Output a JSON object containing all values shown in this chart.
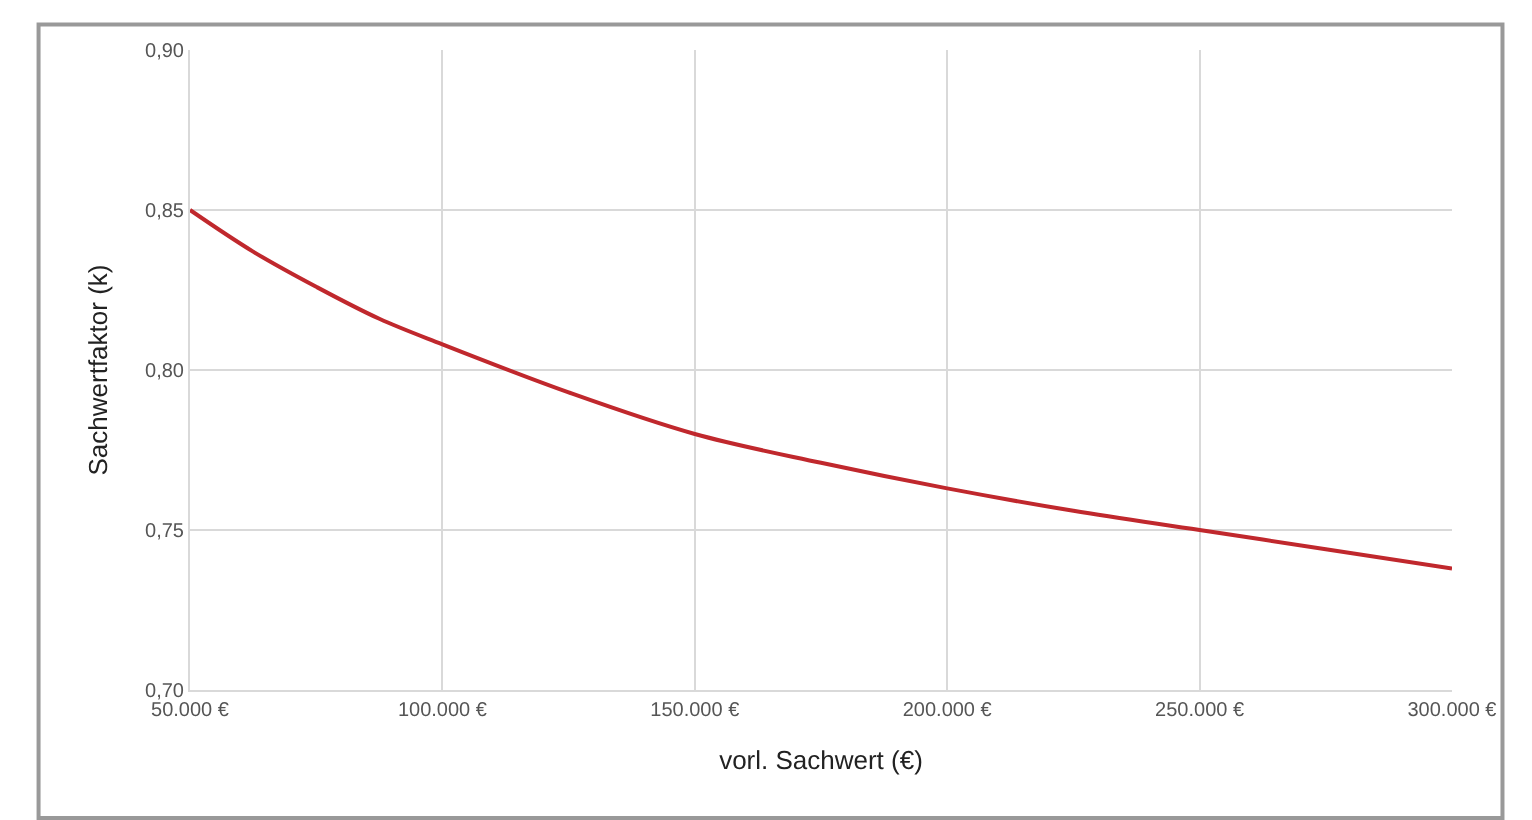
{
  "chart_data": {
    "type": "line",
    "xlabel": "vorl. Sachwert (€)",
    "ylabel": "Sachwertfaktor (k)",
    "x": [
      50000,
      62500,
      75000,
      87500,
      100000,
      125000,
      150000,
      175000,
      200000,
      225000,
      250000,
      275000,
      300000
    ],
    "series": [
      {
        "color": "#c0282d",
        "values": [
          0.85,
          0.837,
          0.826,
          0.816,
          0.808,
          0.793,
          0.78,
          0.771,
          0.763,
          0.756,
          0.75,
          0.744,
          0.738
        ]
      }
    ],
    "xlim": [
      50000,
      300000
    ],
    "xticks": [
      {
        "value": 50000,
        "label": "50.000 €"
      },
      {
        "value": 100000,
        "label": "100.000 €"
      },
      {
        "value": 150000,
        "label": "150.000 €"
      },
      {
        "value": 200000,
        "label": "200.000 €"
      },
      {
        "value": 250000,
        "label": "250.000 €"
      },
      {
        "value": 300000,
        "label": "300.000 €"
      }
    ],
    "ylim": [
      0.7,
      0.9
    ],
    "yticks": [
      {
        "value": 0.7,
        "label": "0,70"
      },
      {
        "value": 0.75,
        "label": "0,75"
      },
      {
        "value": 0.8,
        "label": "0,80"
      },
      {
        "value": 0.85,
        "label": "0,85"
      },
      {
        "value": 0.9,
        "label": "0,90"
      }
    ],
    "grid": true,
    "marker": "none",
    "line_style": "solid"
  }
}
